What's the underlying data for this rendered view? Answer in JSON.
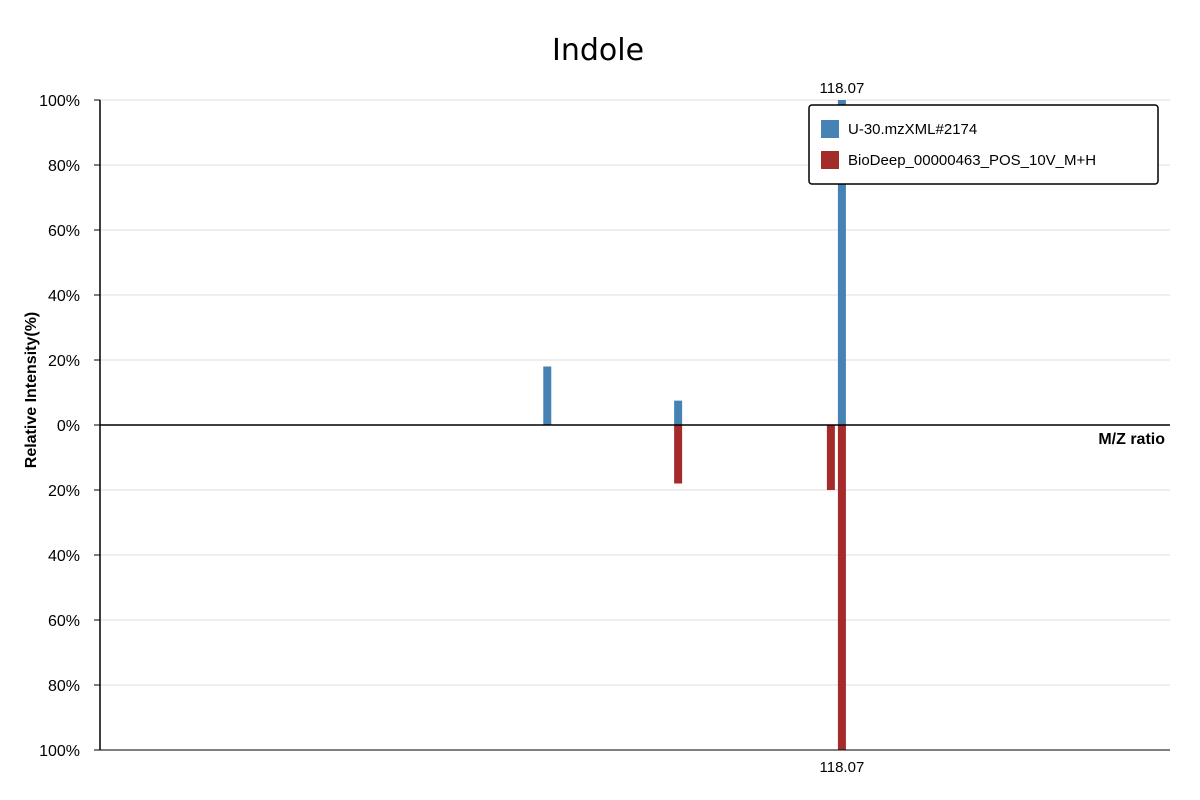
{
  "chart_data": {
    "type": "bar",
    "title": "Indole",
    "xlabel": "M/Z ratio",
    "ylabel": "Relative Intensity(%)",
    "ylim": [
      -100,
      100
    ],
    "y_ticks": [
      "100%",
      "80%",
      "60%",
      "40%",
      "20%",
      "0%",
      "20%",
      "40%",
      "60%",
      "80%",
      "100%"
    ],
    "grid": true,
    "legend": "top-right",
    "series": [
      {
        "name": "U-30.mzXML#2174",
        "color": "#4682b4",
        "direction": "up",
        "peaks": [
          {
            "mz": 91.05,
            "intensity": 18
          },
          {
            "mz": 103.05,
            "intensity": 7.5
          },
          {
            "mz": 118.07,
            "intensity": 100,
            "label": "118.07"
          }
        ]
      },
      {
        "name": "BioDeep_00000463_POS_10V_M+H",
        "color": "#a52a2a",
        "direction": "down",
        "peaks": [
          {
            "mz": 103.05,
            "intensity": 18
          },
          {
            "mz": 117.06,
            "intensity": 20
          },
          {
            "mz": 118.07,
            "intensity": 100,
            "label": "118.07"
          }
        ]
      }
    ]
  }
}
